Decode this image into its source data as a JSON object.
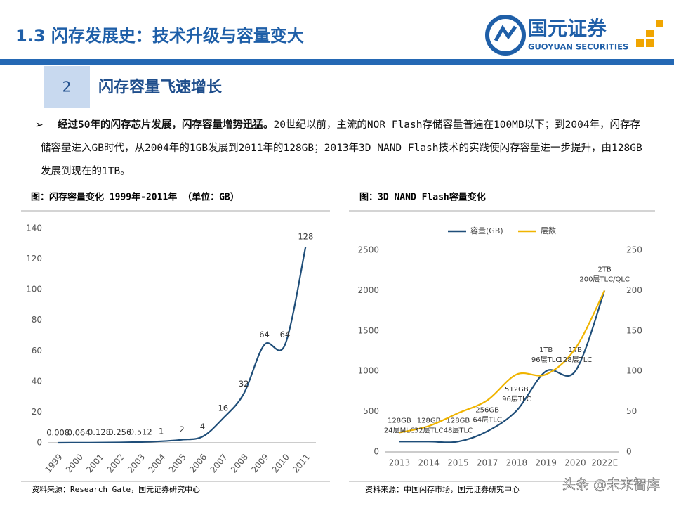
{
  "header": {
    "title": "1.3 闪存发展史：技术升级与容量变大",
    "logo_cn": "国元证券",
    "logo_en": "GUOYUAN SECURITIES"
  },
  "section": {
    "number": "2",
    "title": "闪存容量飞速增长"
  },
  "bullet": {
    "bold": "经过50年的闪存芯片发展，闪存容量增势迅猛。",
    "text": "20世纪以前，主流的NOR Flash存储容量普遍在100MB以下；到2004年，闪存存储容量进入GB时代，从2004年的1GB发展到2011年的128GB；2013年3D NAND Flash技术的实践使闪存容量进一步提升，由128GB 发展到现在的1TB。"
  },
  "watermark": "头条 @未来智库",
  "chart_data": [
    {
      "type": "line",
      "title": "图：闪存容量变化 1999年-2011年 （单位：GB）",
      "source": "资料来源：Research Gate，国元证券研究中心",
      "categories": [
        "1999",
        "2000",
        "2001",
        "2002",
        "2003",
        "2004",
        "2005",
        "2006",
        "2007",
        "2008",
        "2009",
        "2010",
        "2011"
      ],
      "values": [
        0.008,
        0.064,
        0.128,
        0.256,
        0.512,
        1,
        2,
        4,
        16,
        32,
        64,
        64,
        128
      ],
      "color": "#1f4e79",
      "ylim": [
        0,
        140
      ],
      "yticks": [
        0,
        20,
        40,
        60,
        80,
        100,
        120,
        140
      ],
      "grid": false
    },
    {
      "type": "line",
      "title": "图：3D NAND Flash容量变化",
      "source": "资料来源：中国闪存市场，国元证券研究中心",
      "categories": [
        "2013",
        "2014",
        "2015",
        "2017",
        "2018",
        "2019",
        "2020",
        "2022E"
      ],
      "series": [
        {
          "name": "容量(GB)",
          "color": "#1f4e79",
          "values": [
            128,
            128,
            128,
            256,
            512,
            1000,
            1000,
            2000
          ],
          "value_labels": [
            "128GB",
            "128GB",
            "128GB",
            "256GB",
            "512GB",
            "1TB",
            "1TB",
            "2TB"
          ]
        },
        {
          "name": "层数",
          "color": "#f0b400",
          "axis": "y2",
          "values": [
            24,
            32,
            48,
            64,
            96,
            96,
            128,
            200
          ],
          "value_labels": [
            "24层MLC",
            "32层TLC",
            "48层TLC",
            "64层TLC",
            "96层TLC",
            "96层TLC",
            "128层TLC",
            "200层TLC/QLC"
          ]
        }
      ],
      "ylim": [
        0,
        2500
      ],
      "yticks": [
        0,
        500,
        1000,
        1500,
        2000,
        2500
      ],
      "y2lim": [
        0,
        250
      ],
      "y2ticks": [
        0,
        50,
        100,
        150,
        200,
        250
      ],
      "grid": false,
      "legend": "top"
    }
  ]
}
